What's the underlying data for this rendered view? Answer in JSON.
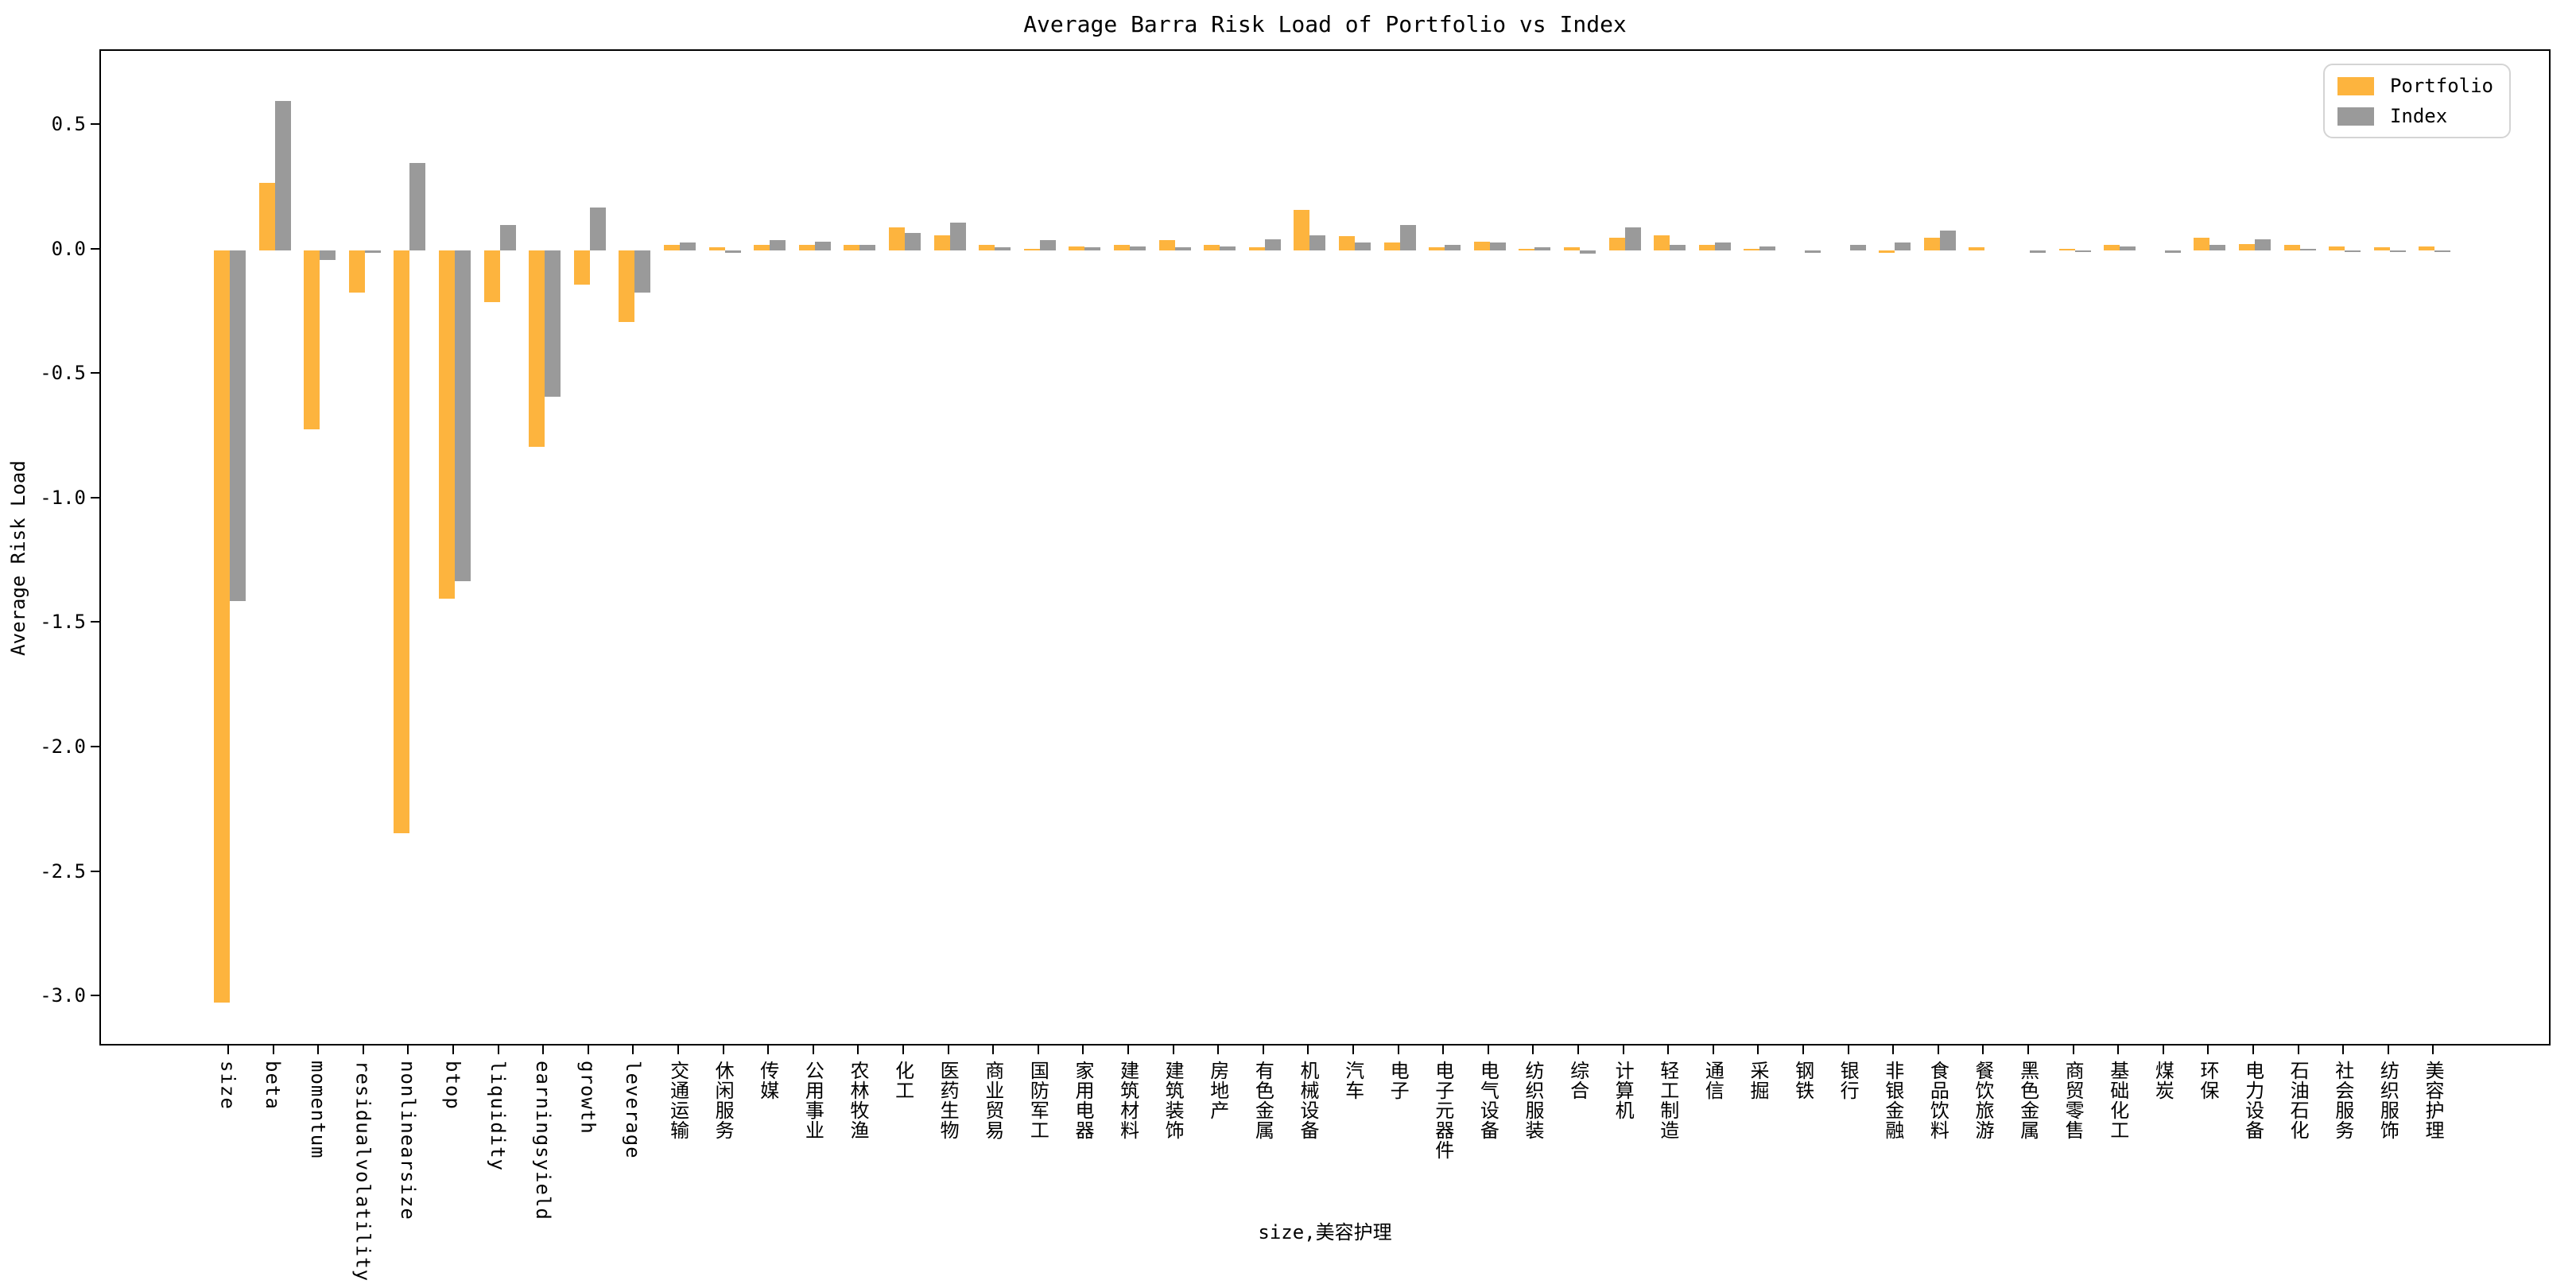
{
  "chart_data": {
    "type": "bar",
    "title": "Average Barra Risk Load of Portfolio vs Index",
    "ylabel": "Average Risk Load",
    "xlabel": "size,美容护理",
    "grid": false,
    "legend_position": "upper right",
    "ylim": [
      -3.2,
      0.8
    ],
    "y_ticks": [
      {
        "value": 0.5,
        "label": "0.5"
      },
      {
        "value": 0.0,
        "label": "0.0"
      },
      {
        "value": -0.5,
        "label": "-0.5"
      },
      {
        "value": -1.0,
        "label": "-1.0"
      },
      {
        "value": -1.5,
        "label": "-1.5"
      },
      {
        "value": -2.0,
        "label": "-2.0"
      },
      {
        "value": -2.5,
        "label": "-2.5"
      },
      {
        "value": -3.0,
        "label": "-3.0"
      }
    ],
    "categories": [
      "size",
      "beta",
      "momentum",
      "residualvolatility",
      "nonlinearsize",
      "btop",
      "liquidity",
      "earningsyield",
      "growth",
      "leverage",
      "交通运输",
      "休闲服务",
      "传媒",
      "公用事业",
      "农林牧渔",
      "化工",
      "医药生物",
      "商业贸易",
      "国防军工",
      "家用电器",
      "建筑材料",
      "建筑装饰",
      "房地产",
      "有色金属",
      "机械设备",
      "汽车",
      "电子",
      "电子元器件",
      "电气设备",
      "纺织服装",
      "综合",
      "计算机",
      "轻工制造",
      "通信",
      "采掘",
      "钢铁",
      "银行",
      "非银金融",
      "食品饮料",
      "餐饮旅游",
      "黑色金属",
      "商贸零售",
      "基础化工",
      "煤炭",
      "环保",
      "电力设备",
      "石油石化",
      "社会服务",
      "纺织服饰",
      "美容护理"
    ],
    "series": [
      {
        "name": "Portfolio",
        "color": "#FDB43E",
        "values": [
          -3.02,
          0.27,
          -0.72,
          -0.17,
          -2.34,
          -1.4,
          -0.21,
          -0.79,
          -0.14,
          -0.29,
          0.02,
          0.01,
          0.02,
          0.02,
          0.02,
          0.09,
          0.06,
          0.02,
          0.005,
          0.015,
          0.02,
          0.04,
          0.02,
          0.01,
          0.16,
          0.055,
          0.03,
          0.01,
          0.035,
          0.005,
          0.01,
          0.05,
          0.06,
          0.02,
          0.005,
          0.0,
          0.0,
          -0.01,
          0.05,
          0.01,
          0.0,
          0.005,
          0.02,
          0.0,
          0.05,
          0.025,
          0.02,
          0.015,
          0.01,
          0.015
        ]
      },
      {
        "name": "Index",
        "color": "#9A9A9A",
        "values": [
          -1.41,
          0.6,
          -0.04,
          -0.01,
          0.35,
          -1.33,
          0.1,
          -0.59,
          0.17,
          -0.17,
          0.03,
          -0.01,
          0.04,
          0.035,
          0.02,
          0.07,
          0.11,
          0.01,
          0.04,
          0.01,
          0.015,
          0.01,
          0.015,
          0.045,
          0.06,
          0.03,
          0.1,
          0.02,
          0.03,
          0.01,
          -0.015,
          0.09,
          0.02,
          0.03,
          0.015,
          -0.01,
          0.02,
          0.03,
          0.08,
          0.0,
          -0.01,
          -0.005,
          0.015,
          -0.01,
          0.02,
          0.045,
          0.005,
          -0.005,
          -0.005,
          -0.005
        ]
      }
    ]
  }
}
